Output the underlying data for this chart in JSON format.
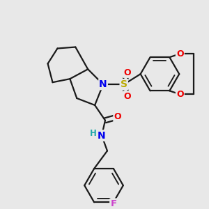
{
  "bg_color": "#e8e8e8",
  "atom_colors": {
    "C": "#1a1a1a",
    "N": "#0000ee",
    "O": "#ee0000",
    "S": "#bbaa00",
    "F": "#cc44cc",
    "H": "#22aaaa"
  },
  "bond_color": "#1a1a1a",
  "bond_width": 1.6
}
